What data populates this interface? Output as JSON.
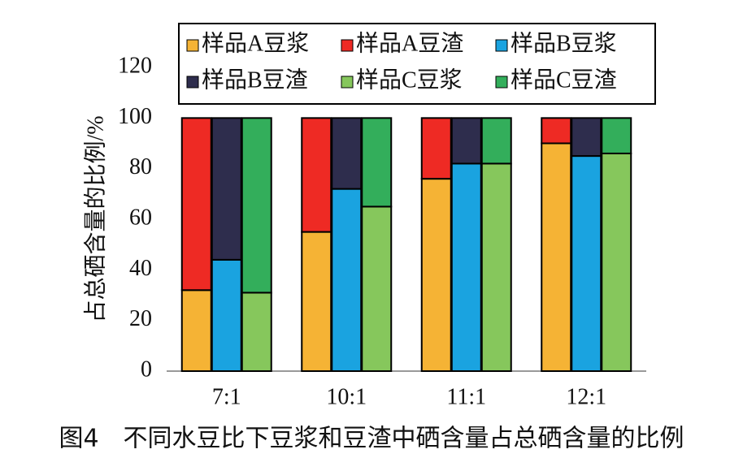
{
  "chart_data": {
    "type": "bar",
    "caption": "图4　不同水豆比下豆浆和豆渣中硒含量占总硒含量的比例",
    "ylabel": "占总硒含量的比例/%",
    "categories": [
      "7:1",
      "10:1",
      "11:1",
      "12:1"
    ],
    "series": [
      {
        "name": "样品A豆浆",
        "color": "#f5b335",
        "values": [
          32,
          55,
          76,
          90
        ]
      },
      {
        "name": "样品A豆渣",
        "color": "#ee2a24",
        "values": [
          68,
          45,
          24,
          10
        ]
      },
      {
        "name": "样品B豆浆",
        "color": "#1aa3e0",
        "values": [
          44,
          72,
          82,
          85
        ]
      },
      {
        "name": "样品B豆渣",
        "color": "#2e2d4d",
        "values": [
          56,
          28,
          18,
          15
        ]
      },
      {
        "name": "样品C豆浆",
        "color": "#86c75c",
        "values": [
          31,
          65,
          82,
          86
        ]
      },
      {
        "name": "样品C豆渣",
        "color": "#33ae5b",
        "values": [
          69,
          35,
          18,
          14
        ]
      }
    ],
    "ylim": [
      0,
      120
    ],
    "yticks": [
      0,
      20,
      40,
      60,
      80,
      100,
      120
    ]
  }
}
